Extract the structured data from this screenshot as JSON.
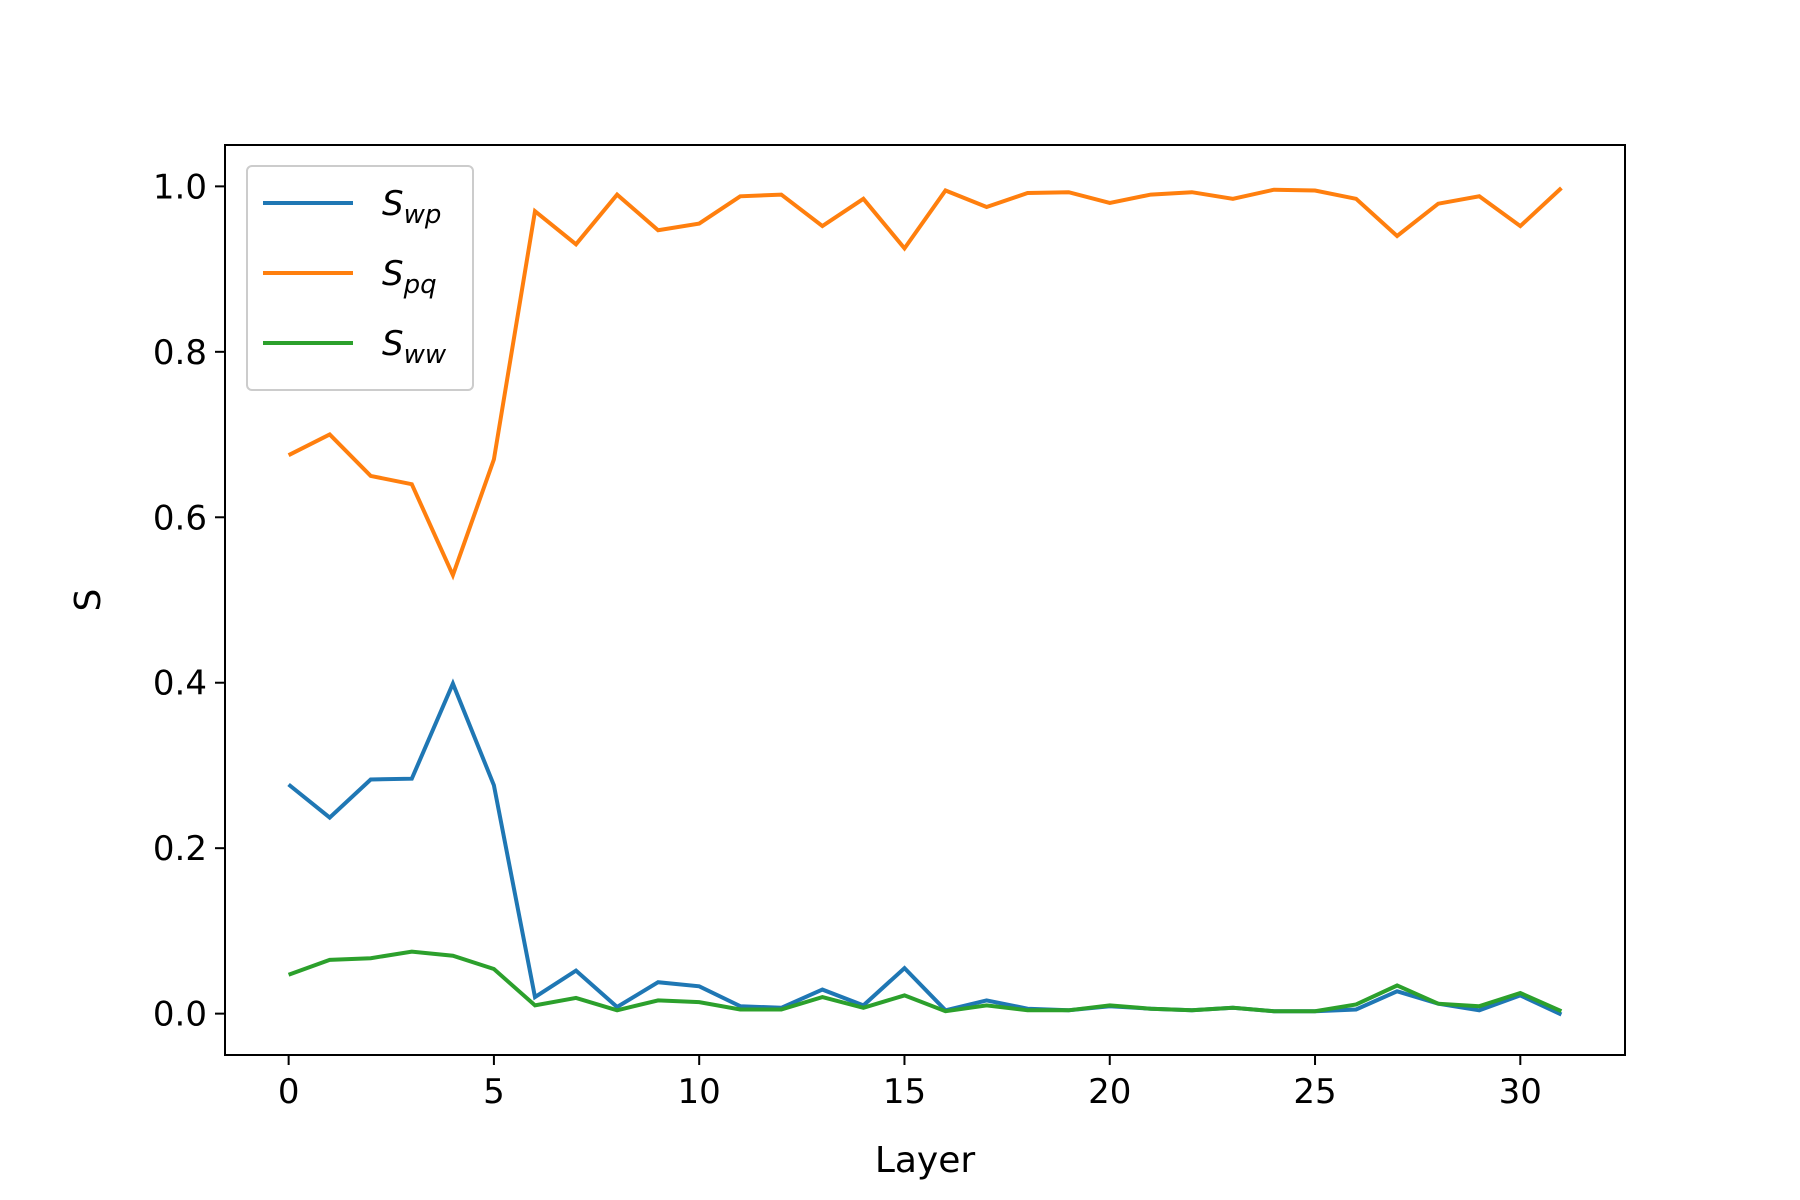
{
  "chart_data": {
    "type": "line",
    "title": "",
    "xlabel": "Layer",
    "ylabel": "S",
    "xlim": [
      -1.55,
      32.55
    ],
    "ylim": [
      -0.05,
      1.05
    ],
    "xticks": [
      0,
      5,
      10,
      15,
      20,
      25,
      30
    ],
    "yticks": [
      0.0,
      0.2,
      0.4,
      0.6,
      0.8,
      1.0
    ],
    "xtick_labels": [
      "0",
      "5",
      "10",
      "15",
      "20",
      "25",
      "30"
    ],
    "ytick_labels": [
      "0.0",
      "0.2",
      "0.4",
      "0.6",
      "0.8",
      "1.0"
    ],
    "grid": false,
    "legend_position": "top-left",
    "x": [
      0,
      1,
      2,
      3,
      4,
      5,
      6,
      7,
      8,
      9,
      10,
      11,
      12,
      13,
      14,
      15,
      16,
      17,
      18,
      19,
      20,
      21,
      22,
      23,
      24,
      25,
      26,
      27,
      28,
      29,
      30,
      31
    ],
    "series": [
      {
        "name": "S",
        "subscript": "wp",
        "color": "#1f77b4",
        "values": [
          0.277,
          0.237,
          0.283,
          0.284,
          0.399,
          0.276,
          0.02,
          0.052,
          0.008,
          0.038,
          0.033,
          0.009,
          0.007,
          0.029,
          0.01,
          0.055,
          0.004,
          0.016,
          0.006,
          0.004,
          0.009,
          0.006,
          0.004,
          0.007,
          0.003,
          0.003,
          0.005,
          0.027,
          0.012,
          0.004,
          0.022,
          -0.001
        ]
      },
      {
        "name": "S",
        "subscript": "pq",
        "color": "#ff7f0e",
        "values": [
          0.675,
          0.7,
          0.65,
          0.64,
          0.53,
          0.67,
          0.97,
          0.93,
          0.99,
          0.947,
          0.955,
          0.988,
          0.99,
          0.952,
          0.985,
          0.925,
          0.995,
          0.975,
          0.992,
          0.993,
          0.98,
          0.99,
          0.993,
          0.985,
          0.996,
          0.995,
          0.985,
          0.94,
          0.979,
          0.988,
          0.952,
          0.998
        ]
      },
      {
        "name": "S",
        "subscript": "ww",
        "color": "#2ca02c",
        "values": [
          0.047,
          0.065,
          0.067,
          0.075,
          0.07,
          0.054,
          0.01,
          0.019,
          0.004,
          0.016,
          0.014,
          0.005,
          0.005,
          0.02,
          0.007,
          0.022,
          0.003,
          0.01,
          0.004,
          0.004,
          0.01,
          0.006,
          0.004,
          0.007,
          0.003,
          0.003,
          0.011,
          0.034,
          0.012,
          0.009,
          0.025,
          0.003
        ]
      }
    ]
  }
}
